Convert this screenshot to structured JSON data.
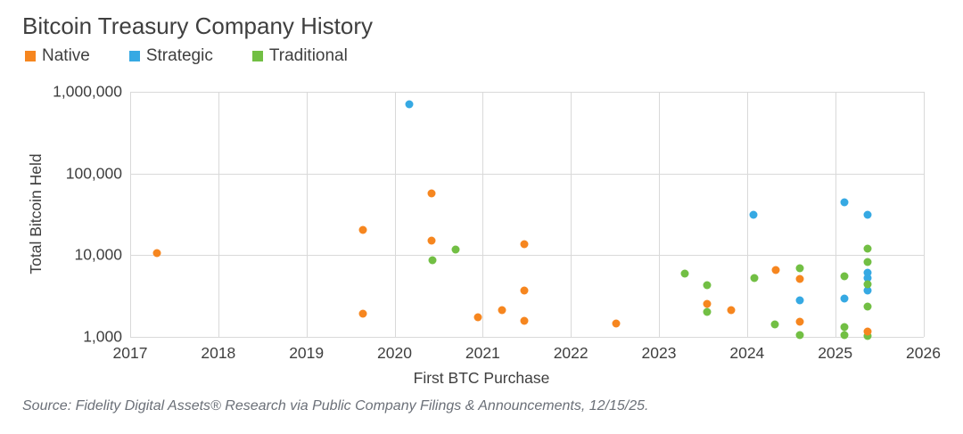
{
  "title": "Bitcoin Treasury Company History",
  "legend": [
    {
      "label": "Native",
      "color": "#F6861F"
    },
    {
      "label": "Strategic",
      "color": "#36A9E3"
    },
    {
      "label": "Traditional",
      "color": "#72BF44"
    }
  ],
  "source_note": "Source: Fidelity Digital Assets® Research via Public Company Filings & Announcements, 12/15/25.",
  "chart_data": {
    "type": "scatter",
    "title": "Bitcoin Treasury Company History",
    "xlabel": "First BTC Purchase",
    "ylabel": "Total Bitcoin Held",
    "x_range": [
      2017,
      2026
    ],
    "y_range": [
      1000,
      1000000
    ],
    "y_scale": "log",
    "grid": true,
    "legend_position": "top-left",
    "x_ticks": [
      2017,
      2018,
      2019,
      2020,
      2021,
      2022,
      2023,
      2024,
      2025,
      2026
    ],
    "y_ticks": [
      {
        "value": 1000,
        "label": "1,000"
      },
      {
        "value": 10000,
        "label": "10,000"
      },
      {
        "value": 100000,
        "label": "100,000"
      },
      {
        "value": 1000000,
        "label": "1,000,000"
      }
    ],
    "series_colors": {
      "Native": "#F6861F",
      "Strategic": "#36A9E3",
      "Traditional": "#72BF44"
    },
    "points": [
      {
        "series": "Traditional",
        "x": 2025.37,
        "y": 1020
      },
      {
        "series": "Native",
        "x": 2017.3,
        "y": 10500
      },
      {
        "series": "Native",
        "x": 2019.64,
        "y": 20000
      },
      {
        "series": "Native",
        "x": 2019.64,
        "y": 1900
      },
      {
        "series": "Native",
        "x": 2020.42,
        "y": 57000
      },
      {
        "series": "Native",
        "x": 2020.42,
        "y": 15000
      },
      {
        "series": "Native",
        "x": 2020.95,
        "y": 1700
      },
      {
        "series": "Native",
        "x": 2021.22,
        "y": 2100
      },
      {
        "series": "Native",
        "x": 2021.47,
        "y": 13500
      },
      {
        "series": "Native",
        "x": 2021.47,
        "y": 3700
      },
      {
        "series": "Native",
        "x": 2021.47,
        "y": 1550
      },
      {
        "series": "Native",
        "x": 2022.51,
        "y": 1450
      },
      {
        "series": "Native",
        "x": 2023.55,
        "y": 2500
      },
      {
        "series": "Native",
        "x": 2023.82,
        "y": 2100
      },
      {
        "series": "Native",
        "x": 2024.33,
        "y": 6600
      },
      {
        "series": "Native",
        "x": 2024.6,
        "y": 5100
      },
      {
        "series": "Native",
        "x": 2024.6,
        "y": 1500
      },
      {
        "series": "Native",
        "x": 2025.37,
        "y": 1150
      },
      {
        "series": "Strategic",
        "x": 2020.17,
        "y": 700000
      },
      {
        "series": "Strategic",
        "x": 2024.07,
        "y": 31000
      },
      {
        "series": "Strategic",
        "x": 2024.6,
        "y": 2800
      },
      {
        "series": "Strategic",
        "x": 2025.1,
        "y": 44000
      },
      {
        "series": "Strategic",
        "x": 2025.1,
        "y": 2900
      },
      {
        "series": "Strategic",
        "x": 2025.37,
        "y": 31000
      },
      {
        "series": "Strategic",
        "x": 2025.37,
        "y": 6000
      },
      {
        "series": "Strategic",
        "x": 2025.37,
        "y": 5200
      },
      {
        "series": "Strategic",
        "x": 2025.37,
        "y": 3700
      },
      {
        "series": "Traditional",
        "x": 2020.43,
        "y": 8700
      },
      {
        "series": "Traditional",
        "x": 2020.69,
        "y": 11500
      },
      {
        "series": "Traditional",
        "x": 2023.29,
        "y": 5900
      },
      {
        "series": "Traditional",
        "x": 2023.55,
        "y": 4200
      },
      {
        "series": "Traditional",
        "x": 2023.55,
        "y": 2000
      },
      {
        "series": "Traditional",
        "x": 2024.08,
        "y": 5200
      },
      {
        "series": "Traditional",
        "x": 2024.32,
        "y": 1400
      },
      {
        "series": "Traditional",
        "x": 2024.6,
        "y": 6900
      },
      {
        "series": "Traditional",
        "x": 2024.6,
        "y": 1050
      },
      {
        "series": "Traditional",
        "x": 2025.1,
        "y": 5500
      },
      {
        "series": "Traditional",
        "x": 2025.1,
        "y": 1300
      },
      {
        "series": "Traditional",
        "x": 2025.1,
        "y": 1050
      },
      {
        "series": "Traditional",
        "x": 2025.37,
        "y": 12000
      },
      {
        "series": "Traditional",
        "x": 2025.37,
        "y": 8200
      },
      {
        "series": "Traditional",
        "x": 2025.37,
        "y": 4400
      },
      {
        "series": "Traditional",
        "x": 2025.37,
        "y": 2300
      }
    ]
  }
}
